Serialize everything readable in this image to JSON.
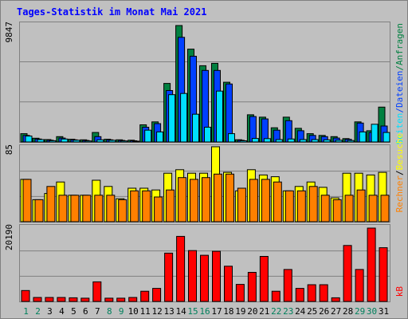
{
  "title": "Tages-Statistik im Monat Mai 2021",
  "colors": {
    "background": "#C0C0C0",
    "title": "#0000FF",
    "hits": "#008040",
    "files": "#0040FF",
    "pages": "#00E0FF",
    "visits": "#FFFF00",
    "sites": "#FF8000",
    "kbytes": "#FF0000",
    "weekend_day": "#00805C",
    "weekday": "#000000"
  },
  "right_labels": {
    "hits": "Anfragen",
    "files": "Dateien",
    "pages": "Seiten",
    "visits": "Besuche",
    "sites": "Rechner",
    "kbytes": "kB",
    "separator": "/"
  },
  "chart_data": [
    {
      "type": "bar",
      "title": "Tages-Statistik im Monat Mai 2021",
      "ymax_label": "9847",
      "ylim": [
        0,
        9847
      ],
      "categories": [
        "1",
        "2",
        "3",
        "4",
        "5",
        "6",
        "7",
        "8",
        "9",
        "10",
        "11",
        "12",
        "13",
        "14",
        "15",
        "16",
        "17",
        "18",
        "19",
        "20",
        "21",
        "22",
        "23",
        "24",
        "25",
        "26",
        "27",
        "28",
        "29",
        "30",
        "31"
      ],
      "weekend_days": [
        "1",
        "2",
        "8",
        "9",
        "15",
        "16",
        "22",
        "23",
        "29",
        "30"
      ],
      "series": [
        {
          "name": "Anfragen",
          "values": [
            700,
            320,
            200,
            450,
            230,
            180,
            800,
            230,
            180,
            150,
            1450,
            1700,
            4950,
            9847,
            7850,
            6450,
            6650,
            5050,
            190,
            2300,
            2100,
            1200,
            2100,
            1150,
            700,
            550,
            450,
            280,
            1700,
            950,
            2950
          ]
        },
        {
          "name": "Dateien",
          "values": [
            550,
            250,
            150,
            330,
            180,
            130,
            450,
            180,
            130,
            100,
            1250,
            1550,
            4350,
            8850,
            7250,
            6050,
            6050,
            4900,
            140,
            2150,
            1950,
            1000,
            1800,
            950,
            550,
            450,
            330,
            220,
            1600,
            800,
            1350
          ]
        },
        {
          "name": "Seiten",
          "values": [
            500,
            200,
            110,
            250,
            150,
            90,
            180,
            140,
            90,
            70,
            1000,
            850,
            4000,
            4100,
            2350,
            1250,
            4300,
            700,
            100,
            300,
            280,
            200,
            250,
            200,
            200,
            180,
            150,
            120,
            850,
            1500,
            800
          ]
        }
      ]
    },
    {
      "type": "bar",
      "ymax_label": "85",
      "ylim": [
        0,
        85
      ],
      "categories": [
        "1",
        "2",
        "3",
        "4",
        "5",
        "6",
        "7",
        "8",
        "9",
        "10",
        "11",
        "12",
        "13",
        "14",
        "15",
        "16",
        "17",
        "18",
        "19",
        "20",
        "21",
        "22",
        "23",
        "24",
        "25",
        "26",
        "27",
        "28",
        "29",
        "30",
        "31"
      ],
      "series": [
        {
          "name": "Besuche",
          "values": [
            48,
            25,
            32,
            45,
            30,
            30,
            47,
            40,
            26,
            38,
            38,
            36,
            55,
            59,
            55,
            55,
            85,
            56,
            35,
            59,
            53,
            51,
            35,
            40,
            45,
            39,
            27,
            55,
            55,
            53,
            56
          ]
        },
        {
          "name": "Rechner",
          "values": [
            48,
            25,
            40,
            30,
            30,
            30,
            30,
            30,
            25,
            35,
            35,
            28,
            36,
            50,
            48,
            50,
            54,
            54,
            38,
            48,
            48,
            45,
            35,
            35,
            40,
            30,
            25,
            30,
            36,
            30,
            30
          ]
        }
      ]
    },
    {
      "type": "bar",
      "ymax_label": "20190",
      "ylim": [
        0,
        20190
      ],
      "categories": [
        "1",
        "2",
        "3",
        "4",
        "5",
        "6",
        "7",
        "8",
        "9",
        "10",
        "11",
        "12",
        "13",
        "14",
        "15",
        "16",
        "17",
        "18",
        "19",
        "20",
        "21",
        "22",
        "23",
        "24",
        "25",
        "26",
        "27",
        "28",
        "29",
        "30",
        "31"
      ],
      "series": [
        {
          "name": "kB",
          "values": [
            3000,
            1100,
            1100,
            1100,
            1000,
            900,
            5400,
            900,
            900,
            1100,
            2800,
            3600,
            13300,
            17900,
            14000,
            12700,
            13800,
            9700,
            4700,
            8000,
            12400,
            2800,
            8800,
            3600,
            4600,
            4600,
            1000,
            15400,
            8800,
            20190,
            14800
          ]
        }
      ]
    }
  ]
}
